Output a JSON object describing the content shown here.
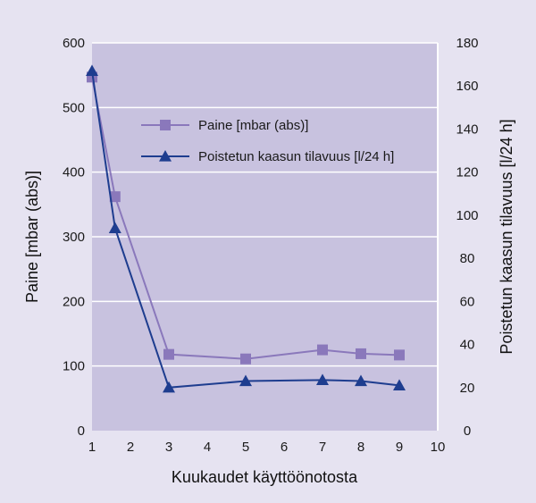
{
  "chart_data": {
    "type": "line",
    "xlabel": "Kuukaudet käyttöönotosta",
    "ylabel_left": "Paine [mbar (abs)]",
    "ylabel_right": "Poistetun kaasun tilavuus [l/24 h]",
    "xlim": [
      1,
      10
    ],
    "ylim_left": [
      0,
      600
    ],
    "ylim_right": [
      0,
      180
    ],
    "xticks": [
      "1",
      "2",
      "3",
      "4",
      "5",
      "6",
      "7",
      "8",
      "9",
      "10"
    ],
    "yticks_left": [
      "0",
      "100",
      "200",
      "300",
      "400",
      "500",
      "600"
    ],
    "yticks_right": [
      "0",
      "20",
      "40",
      "60",
      "80",
      "100",
      "120",
      "140",
      "160",
      "180"
    ],
    "grid": true,
    "legend_position": "upper-middle",
    "series": [
      {
        "name": "Paine [mbar (abs)]",
        "axis": "left",
        "marker": "square",
        "color": "#8a78bb",
        "x": [
          1,
          1.6,
          3,
          5,
          7,
          8,
          9
        ],
        "y": [
          547,
          362,
          118,
          111,
          125,
          119,
          117
        ]
      },
      {
        "name": "Poistetun kaasun tilavuus [l/24 h]",
        "axis": "right",
        "marker": "triangle",
        "color": "#1e3d8f",
        "x": [
          1,
          1.6,
          3,
          5,
          7,
          8,
          9
        ],
        "y": [
          167,
          94,
          20,
          23,
          23.5,
          23,
          21
        ]
      }
    ]
  },
  "colors": {
    "background": "#e6e3f1",
    "plot_area": "#c8c2df",
    "grid": "#ffffff"
  }
}
